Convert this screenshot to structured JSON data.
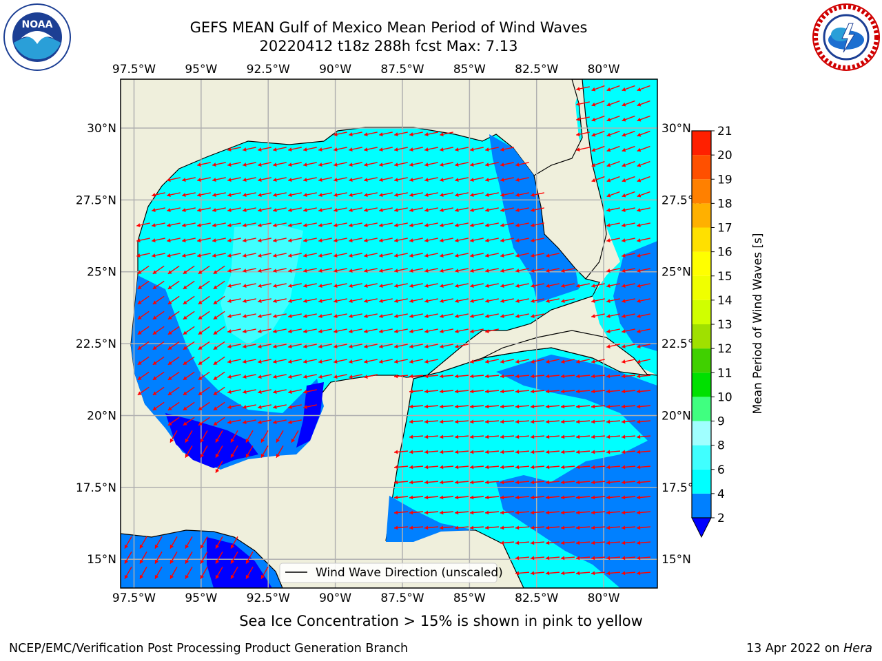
{
  "header": {
    "title_line1": "GEFS MEAN Gulf of Mexico Mean Period of Wind Waves",
    "title_line2": "20220412 t18z 288h fcst   Max: 7.13"
  },
  "map": {
    "lon_labels": [
      "97.5°W",
      "95°W",
      "92.5°W",
      "90°W",
      "87.5°W",
      "85°W",
      "82.5°W",
      "80°W"
    ],
    "lon_values": [
      -97.5,
      -95,
      -92.5,
      -90,
      -87.5,
      -85,
      -82.5,
      -80
    ],
    "lat_labels": [
      "30°N",
      "27.5°N",
      "25°N",
      "22.5°N",
      "20°N",
      "17.5°N",
      "15°N"
    ],
    "lat_values": [
      30,
      27.5,
      25,
      22.5,
      20,
      17.5,
      15
    ],
    "lon_range": [
      -98,
      -78
    ],
    "lat_range": [
      14,
      31.7
    ],
    "grid": true,
    "legend_label": "Wind Wave Direction (unscaled)",
    "legend_position": "bottom-center",
    "colors": {
      "land": "#efefdc",
      "coast": "#000000",
      "arrow": "#ff0000",
      "grid": "#b0b0b0"
    }
  },
  "colorbar": {
    "label": "Mean Period of Wind Waves [s]",
    "ticks": [
      "2",
      "4",
      "6",
      "8",
      "9",
      "10",
      "11",
      "12",
      "13",
      "14",
      "15",
      "16",
      "17",
      "18",
      "19",
      "20",
      "21"
    ],
    "colors": [
      "#0080ff",
      "#00ffff",
      "#40ffff",
      "#a0ffff",
      "#40ff80",
      "#00e000",
      "#40d000",
      "#a0e000",
      "#d0ff00",
      "#f0ff00",
      "#ffff00",
      "#ffe000",
      "#ffb000",
      "#ff8000",
      "#ff5000",
      "#ff2000"
    ],
    "under_color": "#0000ff",
    "extend": "min"
  },
  "caption": "Sea Ice Concentration > 15% is shown in pink to yellow",
  "footer": {
    "left": "NCEP/EMC/Verification Post Processing Product Generation Branch",
    "right_date": "13 Apr 2022 on",
    "right_host": "Hera"
  }
}
